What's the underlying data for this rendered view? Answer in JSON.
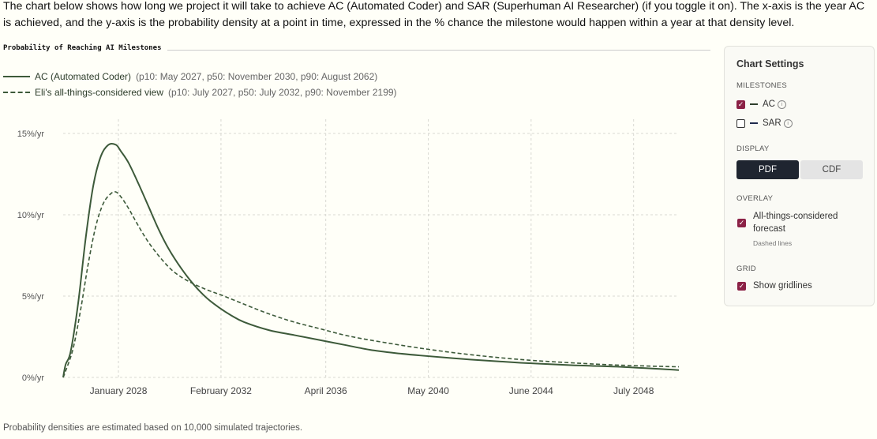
{
  "intro_text": "The chart below shows how long we project it will take to achieve AC (Automated Coder) and SAR (Superhuman AI Researcher) (if you toggle it on). The x-axis is the year AC is achieved, and the y-axis is the probability density at a point in time, expressed in the % chance the milestone would happen within a year at that density level.",
  "chart_title": "Probability of Reaching AI Milestones",
  "legend": [
    {
      "name": "AC (Automated Coder)",
      "stats": "(p10: May 2027, p50: November 2030, p90: August 2062)",
      "style": "solid"
    },
    {
      "name": "Eli's all-things-considered view",
      "stats": "(p10: July 2027, p50: July 2032, p90: November 2199)",
      "style": "dashed"
    }
  ],
  "footnote": "Probability densities are estimated based on 10,000 simulated trajectories.",
  "chart_data": {
    "type": "line",
    "title": "Probability of Reaching AI Milestones",
    "xlabel": "",
    "ylabel": "",
    "xlim": [
      2025.8,
      2050.3
    ],
    "ylim": [
      0,
      15
    ],
    "y_ticks": [
      0,
      5,
      10,
      15
    ],
    "y_tick_labels": [
      "0%/yr",
      "5%/yr",
      "10%/yr",
      "15%/yr"
    ],
    "x_ticks": [
      2028.0,
      2032.08,
      2036.25,
      2040.33,
      2044.42,
      2048.5
    ],
    "x_tick_labels": [
      "January 2028",
      "February 2032",
      "April 2036",
      "May 2040",
      "June 2044",
      "July 2048"
    ],
    "grid": true,
    "series": [
      {
        "name": "AC (Automated Coder)",
        "style": "solid",
        "color": "#3d5a3a",
        "x": [
          2025.8,
          2025.9,
          2026.1,
          2026.4,
          2026.7,
          2027.0,
          2027.3,
          2027.6,
          2027.9,
          2028.1,
          2028.4,
          2028.8,
          2029.2,
          2029.6,
          2030.0,
          2030.5,
          2031.0,
          2031.5,
          2032.0,
          2032.5,
          2033.0,
          2034.0,
          2035.0,
          2036.0,
          2037.0,
          2038.0,
          2039.0,
          2040.0,
          2042.0,
          2044.0,
          2046.0,
          2048.0,
          2050.3
        ],
        "y": [
          0.0,
          0.8,
          1.6,
          4.6,
          8.6,
          11.8,
          13.6,
          14.3,
          14.3,
          13.9,
          13.2,
          11.9,
          10.5,
          9.1,
          7.9,
          6.7,
          5.7,
          4.9,
          4.3,
          3.8,
          3.4,
          2.9,
          2.6,
          2.3,
          2.0,
          1.7,
          1.5,
          1.35,
          1.1,
          0.9,
          0.75,
          0.65,
          0.45
        ]
      },
      {
        "name": "Eli's all-things-considered view",
        "style": "dashed",
        "color": "#3d5a3a",
        "x": [
          2025.8,
          2025.9,
          2026.2,
          2026.5,
          2026.8,
          2027.1,
          2027.4,
          2027.7,
          2027.9,
          2028.1,
          2028.4,
          2028.8,
          2029.2,
          2029.7,
          2030.2,
          2030.8,
          2031.5,
          2032.2,
          2033.0,
          2034.0,
          2035.0,
          2036.0,
          2037.0,
          2038.0,
          2040.0,
          2042.0,
          2044.0,
          2046.0,
          2048.0,
          2050.3
        ],
        "y": [
          0.0,
          0.4,
          1.8,
          4.2,
          7.0,
          9.3,
          10.7,
          11.3,
          11.4,
          11.1,
          10.4,
          9.3,
          8.3,
          7.3,
          6.5,
          5.9,
          5.4,
          5.0,
          4.5,
          3.9,
          3.4,
          3.0,
          2.6,
          2.3,
          1.8,
          1.4,
          1.1,
          0.9,
          0.75,
          0.65
        ]
      }
    ]
  },
  "settings": {
    "title": "Chart Settings",
    "milestones_label": "MILESTONES",
    "milestones": [
      {
        "label": "AC",
        "checked": true,
        "info_icon": "info-icon"
      },
      {
        "label": "SAR",
        "checked": false,
        "info_icon": "info-icon"
      }
    ],
    "display_label": "DISPLAY",
    "display_options": [
      "PDF",
      "CDF"
    ],
    "display_selected": "PDF",
    "overlay_label": "OVERLAY",
    "overlay_option": "All-things-considered forecast",
    "overlay_sub": "Dashed lines",
    "overlay_checked": true,
    "grid_label": "GRID",
    "grid_option": "Show gridlines",
    "grid_checked": true,
    "check_icon": "checkmark-icon",
    "accent_color": "#8b2146"
  }
}
